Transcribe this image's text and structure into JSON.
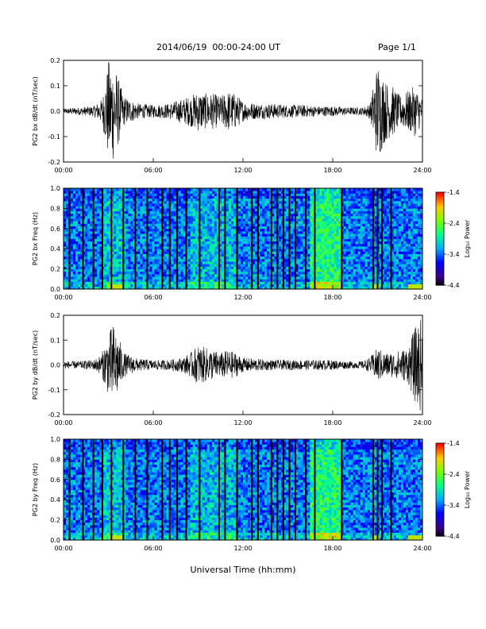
{
  "header": {
    "title": "2014/06/19  00:00-24:00 UT",
    "page": "Page 1/1"
  },
  "x_axis_title": "Universal Time (hh:mm)",
  "colors": {
    "trace": "#000000",
    "frame": "#000000",
    "background": "#ffffff"
  },
  "chart_data": [
    {
      "type": "line",
      "title": "",
      "xlabel": "",
      "ylabel": "PG2 bx dB/dt (nT/sec)",
      "xlim": [
        0,
        24
      ],
      "ylim": [
        -0.2,
        0.2
      ],
      "xticks": [
        "00:00",
        "06:00",
        "12:00",
        "18:00",
        "24:00"
      ],
      "yticks": [
        "-0.2",
        "-0.1",
        "0.0",
        "0.1",
        "0.2"
      ],
      "series": [
        {
          "name": "",
          "x": [
            0,
            1,
            2,
            2.6,
            3,
            3.3,
            3.6,
            4,
            5,
            6,
            7,
            8,
            8.5,
            9,
            9.5,
            10,
            10.5,
            11,
            11.5,
            12,
            13,
            14,
            15,
            16,
            17,
            18,
            19,
            20,
            20.5,
            21,
            21.5,
            22,
            22.5,
            23,
            23.5,
            24
          ],
          "envelope": [
            0.01,
            0.015,
            0.02,
            0.05,
            0.2,
            0.2,
            0.15,
            0.06,
            0.03,
            0.025,
            0.03,
            0.05,
            0.06,
            0.08,
            0.07,
            0.07,
            0.06,
            0.08,
            0.07,
            0.04,
            0.03,
            0.03,
            0.025,
            0.025,
            0.02,
            0.02,
            0.015,
            0.015,
            0.03,
            0.2,
            0.12,
            0.1,
            0.06,
            0.08,
            0.1,
            0.05
          ]
        }
      ]
    },
    {
      "type": "heatmap",
      "title": "",
      "xlabel": "",
      "ylabel": "PG2 bx Freq (Hz)",
      "xlim": [
        0,
        24
      ],
      "ylim": [
        0.0,
        1.0
      ],
      "xticks": [
        "00:00",
        "06:00",
        "12:00",
        "18:00",
        "24:00"
      ],
      "yticks": [
        "0.0",
        "0.2",
        "0.4",
        "0.6",
        "0.8",
        "1.0"
      ],
      "colorbar": {
        "label": "Log₁₀ Power",
        "range": [
          -4.4,
          -1.4
        ],
        "ticks": [
          "-1.4",
          "-2.4",
          "-3.4",
          "-4.4"
        ]
      },
      "data_gaps_hours": [
        0.4,
        1.3,
        2.0,
        2.6,
        3.2,
        4.0,
        4.8,
        5.6,
        6.6,
        7.1,
        7.6,
        8.2,
        9.1,
        10.4,
        10.8,
        11.6,
        12.6,
        13.0,
        13.9,
        14.3,
        14.7,
        15.1,
        15.5,
        16.2,
        16.8,
        18.6,
        20.7,
        21.0,
        21.3,
        21.9
      ]
    },
    {
      "type": "line",
      "title": "",
      "xlabel": "",
      "ylabel": "PG2 by dB/dt (nT/sec)",
      "xlim": [
        0,
        24
      ],
      "ylim": [
        -0.2,
        0.2
      ],
      "xticks": [
        "00:00",
        "06:00",
        "12:00",
        "18:00",
        "24:00"
      ],
      "yticks": [
        "-0.2",
        "-0.1",
        "0.0",
        "0.1",
        "0.2"
      ],
      "series": [
        {
          "name": "",
          "x": [
            0,
            1,
            2,
            2.5,
            3,
            3.3,
            3.6,
            4,
            5,
            6,
            7,
            8,
            8.5,
            9,
            9.5,
            10,
            10.5,
            11,
            11.5,
            12,
            13,
            14,
            15,
            16,
            17,
            18,
            19,
            20,
            20.5,
            21,
            21.5,
            22,
            22.5,
            23,
            23.5,
            24
          ],
          "envelope": [
            0.015,
            0.015,
            0.02,
            0.04,
            0.12,
            0.17,
            0.13,
            0.05,
            0.025,
            0.02,
            0.02,
            0.03,
            0.05,
            0.08,
            0.07,
            0.06,
            0.05,
            0.06,
            0.05,
            0.03,
            0.025,
            0.02,
            0.02,
            0.02,
            0.02,
            0.02,
            0.015,
            0.015,
            0.03,
            0.07,
            0.05,
            0.05,
            0.06,
            0.07,
            0.15,
            0.2
          ]
        }
      ]
    },
    {
      "type": "heatmap",
      "title": "",
      "xlabel": "",
      "ylabel": "PG2 by Freq (Hz)",
      "xlim": [
        0,
        24
      ],
      "ylim": [
        0.0,
        1.0
      ],
      "xticks": [
        "00:00",
        "06:00",
        "12:00",
        "18:00",
        "24:00"
      ],
      "yticks": [
        "0.0",
        "0.2",
        "0.4",
        "0.6",
        "0.8",
        "1.0"
      ],
      "colorbar": {
        "label": "Log₁₀ Power",
        "range": [
          -4.4,
          -1.4
        ],
        "ticks": [
          "-1.4",
          "-2.4",
          "-3.4",
          "-4.4"
        ]
      },
      "data_gaps_hours": [
        0.4,
        1.3,
        2.0,
        2.6,
        3.2,
        4.0,
        4.8,
        5.6,
        6.6,
        7.1,
        7.6,
        8.2,
        9.1,
        10.4,
        10.8,
        11.6,
        12.6,
        13.0,
        13.9,
        14.3,
        14.7,
        15.1,
        15.5,
        16.2,
        16.8,
        18.6,
        20.7,
        21.0,
        21.3,
        21.9
      ]
    }
  ]
}
